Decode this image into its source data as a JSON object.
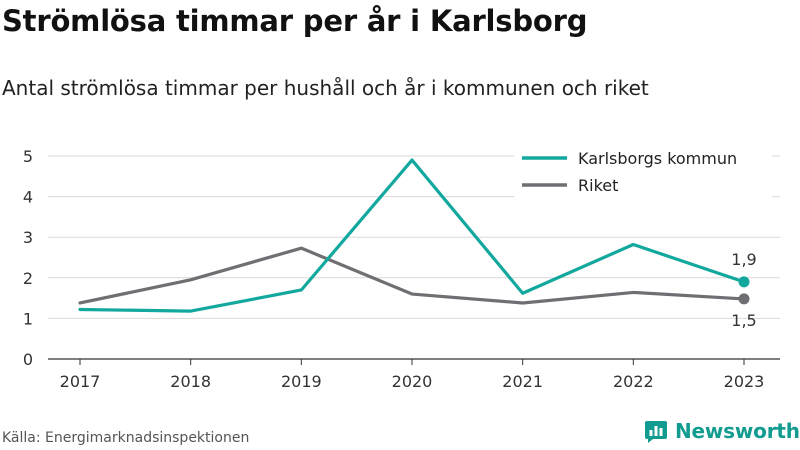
{
  "title": "Strömlösa timmar per år i Karlsborg",
  "subtitle": "Antal strömlösa timmar per hushåll och år i kommunen och riket",
  "source": "Källa: Energimarknadsinspektionen",
  "brand": {
    "name": "Newsworthy",
    "icon": "newsworthy-logo-icon",
    "color": "#129b8f"
  },
  "chart_data": {
    "type": "line",
    "title": "",
    "xlabel": "",
    "ylabel": "",
    "x": [
      2017,
      2018,
      2019,
      2020,
      2021,
      2022,
      2023
    ],
    "ylim": [
      0,
      5
    ],
    "yticks": [
      0,
      1,
      2,
      3,
      4,
      5
    ],
    "grid": true,
    "legend_position": "top-right",
    "series": [
      {
        "name": "Karlsborgs kommun",
        "color": "#13a89e",
        "values": [
          1.22,
          1.18,
          1.7,
          4.9,
          1.62,
          2.82,
          1.9
        ],
        "end_label": "1,9"
      },
      {
        "name": "Riket",
        "color": "#6f6f73",
        "values": [
          1.38,
          1.95,
          2.73,
          1.6,
          1.38,
          1.64,
          1.48
        ],
        "end_label": "1,5"
      }
    ]
  }
}
